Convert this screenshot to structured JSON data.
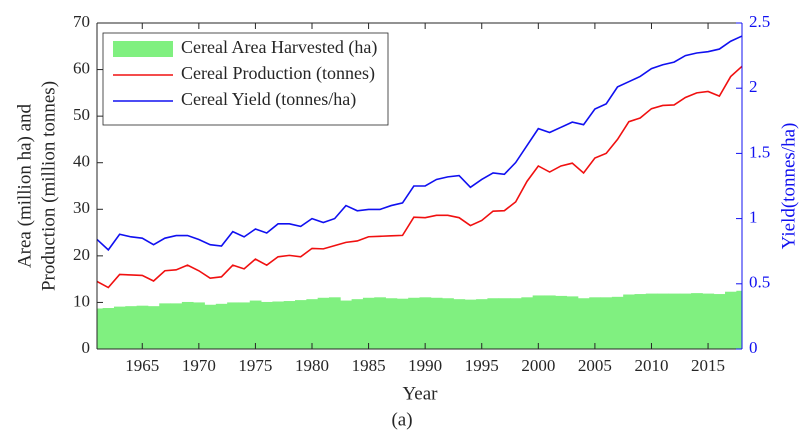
{
  "chart_data": {
    "type": "line",
    "xlabel": "Year",
    "ylabel": [
      "Area (million ha) and",
      "Production (million tonnes)"
    ],
    "y2label": "Yield(tonnes/ha)",
    "caption": "(a)",
    "legend": "upper-left",
    "xlim": [
      1961,
      2018
    ],
    "xticks": [
      1965,
      1970,
      1975,
      1980,
      1985,
      1990,
      1995,
      2000,
      2005,
      2010,
      2015
    ],
    "ylim": [
      0,
      70
    ],
    "yticks": [
      0,
      10,
      20,
      30,
      40,
      50,
      60,
      70
    ],
    "y2lim": [
      0,
      2.5
    ],
    "y2ticks": [
      0,
      0.5,
      1,
      1.5,
      2,
      2.5
    ],
    "y2color": "#1010f0",
    "x": [
      1961,
      1962,
      1963,
      1964,
      1965,
      1966,
      1967,
      1968,
      1969,
      1970,
      1971,
      1972,
      1973,
      1974,
      1975,
      1976,
      1977,
      1978,
      1979,
      1980,
      1981,
      1982,
      1983,
      1984,
      1985,
      1986,
      1987,
      1988,
      1989,
      1990,
      1991,
      1992,
      1993,
      1994,
      1995,
      1996,
      1997,
      1998,
      1999,
      2000,
      2001,
      2002,
      2003,
      2004,
      2005,
      2006,
      2007,
      2008,
      2009,
      2010,
      2011,
      2012,
      2013,
      2014,
      2015,
      2016,
      2017,
      2018
    ],
    "series": [
      {
        "name": "Cereal Area Harvested (ha)",
        "type": "bar",
        "color": "#80f080",
        "axis": "y",
        "values": [
          8.7,
          8.8,
          9.1,
          9.2,
          9.3,
          9.2,
          9.8,
          9.8,
          10.1,
          10.0,
          9.5,
          9.7,
          10.0,
          10.0,
          10.4,
          10.1,
          10.2,
          10.3,
          10.5,
          10.7,
          11.0,
          11.1,
          10.4,
          10.7,
          11.0,
          11.1,
          10.9,
          10.8,
          11.0,
          11.1,
          11.0,
          10.9,
          10.7,
          10.6,
          10.7,
          10.9,
          10.9,
          10.9,
          11.1,
          11.5,
          11.5,
          11.4,
          11.3,
          10.9,
          11.1,
          11.1,
          11.2,
          11.7,
          11.8,
          11.9,
          11.9,
          11.9,
          11.9,
          12.0,
          11.9,
          11.8,
          12.3,
          12.5
        ]
      },
      {
        "name": "Cereal Production (tonnes)",
        "type": "line",
        "color": "#f01010",
        "axis": "y",
        "values": [
          14.5,
          13.2,
          16.0,
          15.9,
          15.8,
          14.6,
          16.8,
          17.0,
          18.0,
          16.8,
          15.2,
          15.5,
          18.0,
          17.2,
          19.3,
          18.0,
          19.8,
          20.1,
          19.8,
          21.6,
          21.5,
          22.2,
          22.9,
          23.2,
          24.1,
          24.2,
          24.3,
          24.4,
          28.3,
          28.2,
          28.7,
          28.7,
          28.2,
          26.5,
          27.6,
          29.6,
          29.7,
          31.6,
          36.0,
          39.3,
          38.0,
          39.3,
          39.9,
          37.8,
          41.0,
          42.0,
          45.0,
          48.8,
          49.6,
          51.6,
          52.3,
          52.4,
          54.0,
          55.0,
          55.3,
          54.3,
          58.5,
          60.7
        ]
      },
      {
        "name": "Cereal Yield (tonnes/ha)",
        "type": "line",
        "color": "#1010f0",
        "axis": "y2",
        "values": [
          0.84,
          0.76,
          0.88,
          0.86,
          0.85,
          0.8,
          0.85,
          0.87,
          0.87,
          0.84,
          0.8,
          0.79,
          0.9,
          0.86,
          0.92,
          0.89,
          0.96,
          0.96,
          0.94,
          1.0,
          0.97,
          1.0,
          1.1,
          1.06,
          1.07,
          1.07,
          1.1,
          1.12,
          1.25,
          1.25,
          1.3,
          1.32,
          1.33,
          1.24,
          1.3,
          1.35,
          1.34,
          1.43,
          1.56,
          1.69,
          1.66,
          1.7,
          1.74,
          1.72,
          1.84,
          1.88,
          2.01,
          2.05,
          2.09,
          2.15,
          2.18,
          2.2,
          2.25,
          2.27,
          2.28,
          2.3,
          2.36,
          2.4
        ]
      }
    ]
  }
}
